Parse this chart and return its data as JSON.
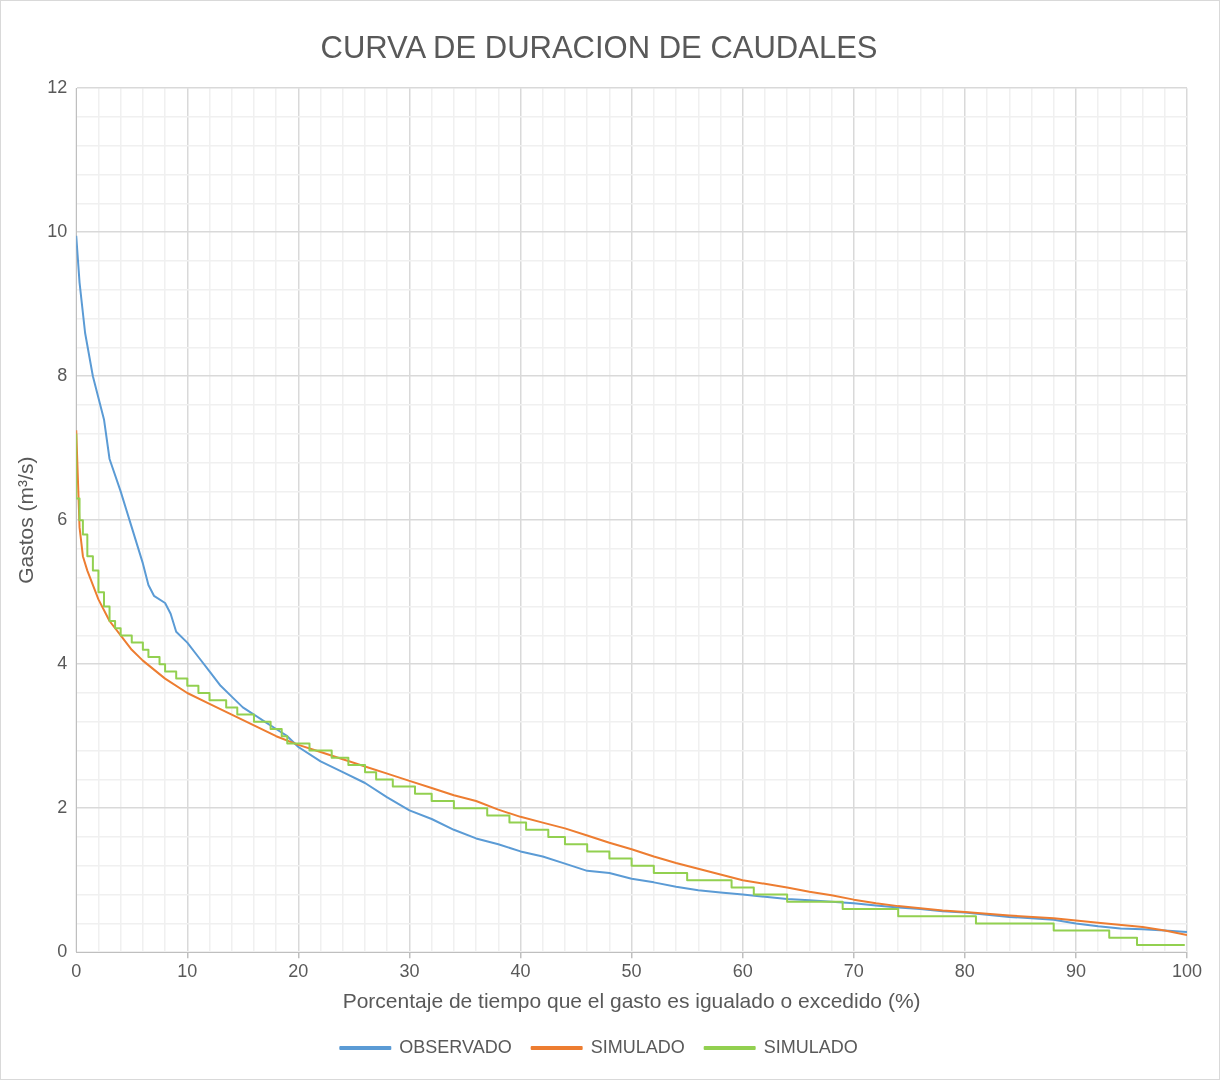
{
  "chart_data": {
    "type": "line",
    "title": "CURVA DE DURACION DE CAUDALES",
    "xlabel": "Porcentaje de tiempo que el gasto es igualado o excedido (%)",
    "ylabel": "Gastos (m³/s)",
    "xlim": [
      0,
      100
    ],
    "ylim": [
      0,
      12
    ],
    "xticks": [
      0,
      {
        "value": 2,
        "label": null
      },
      {
        "value": 4,
        "label": null
      },
      {
        "value": 6,
        "label": null
      },
      {
        "value": 8,
        "label": null
      },
      10,
      {
        "value": 12,
        "label": null
      },
      {
        "value": 14,
        "label": null
      },
      {
        "value": 16,
        "label": null
      },
      {
        "value": 18,
        "label": null
      },
      20,
      {
        "value": 22,
        "label": null
      },
      {
        "value": 24,
        "label": null
      },
      {
        "value": 26,
        "label": null
      },
      {
        "value": 28,
        "label": null
      },
      30,
      {
        "value": 32,
        "label": null
      },
      {
        "value": 34,
        "label": null
      },
      {
        "value": 36,
        "label": null
      },
      {
        "value": 38,
        "label": null
      },
      40,
      {
        "value": 42,
        "label": null
      },
      {
        "value": 44,
        "label": null
      },
      {
        "value": 46,
        "label": null
      },
      {
        "value": 48,
        "label": null
      },
      50,
      {
        "value": 52,
        "label": null
      },
      {
        "value": 54,
        "label": null
      },
      {
        "value": 56,
        "label": null
      },
      {
        "value": 58,
        "label": null
      },
      60,
      {
        "value": 62,
        "label": null
      },
      {
        "value": 64,
        "label": null
      },
      {
        "value": 66,
        "label": null
      },
      {
        "value": 68,
        "label": null
      },
      70,
      {
        "value": 72,
        "label": null
      },
      {
        "value": 74,
        "label": null
      },
      {
        "value": 76,
        "label": null
      },
      {
        "value": 78,
        "label": null
      },
      80,
      {
        "value": 82,
        "label": null
      },
      {
        "value": 84,
        "label": null
      },
      {
        "value": 86,
        "label": null
      },
      {
        "value": 88,
        "label": null
      },
      90,
      {
        "value": 92,
        "label": null
      },
      {
        "value": 94,
        "label": null
      },
      {
        "value": 96,
        "label": null
      },
      {
        "value": 98,
        "label": null
      },
      100
    ],
    "yticks": [
      0,
      {
        "value": 0.4,
        "label": null
      },
      {
        "value": 0.8,
        "label": null
      },
      {
        "value": 1.2,
        "label": null
      },
      {
        "value": 1.6,
        "label": null
      },
      2,
      {
        "value": 2.4,
        "label": null
      },
      {
        "value": 2.8,
        "label": null
      },
      {
        "value": 3.2,
        "label": null
      },
      {
        "value": 3.6,
        "label": null
      },
      4,
      {
        "value": 4.4,
        "label": null
      },
      {
        "value": 4.8,
        "label": null
      },
      {
        "value": 5.2,
        "label": null
      },
      {
        "value": 5.6,
        "label": null
      },
      6,
      {
        "value": 6.4,
        "label": null
      },
      {
        "value": 6.8,
        "label": null
      },
      {
        "value": 7.2,
        "label": null
      },
      {
        "value": 7.6,
        "label": null
      },
      8,
      {
        "value": 8.4,
        "label": null
      },
      {
        "value": 8.8,
        "label": null
      },
      {
        "value": 9.2,
        "label": null
      },
      {
        "value": 9.6,
        "label": null
      },
      10,
      {
        "value": 10.4,
        "label": null
      },
      {
        "value": 10.8,
        "label": null
      },
      {
        "value": 11.2,
        "label": null
      },
      {
        "value": 11.6,
        "label": null
      },
      12
    ],
    "grid": true,
    "legend": "bottom",
    "marker": "none",
    "line_style": "solid",
    "series": [
      {
        "name": "OBSERVADO",
        "color": "#5b9bd5",
        "x": [
          0,
          0.3,
          0.8,
          1.5,
          2.5,
          3,
          4,
          5,
          6,
          6.5,
          7,
          8,
          8.5,
          9,
          10,
          11,
          12,
          13,
          14,
          15,
          16,
          17,
          18,
          19,
          20,
          22,
          24,
          26,
          28,
          30,
          32,
          34,
          36,
          38,
          40,
          42,
          44,
          46,
          48,
          50,
          52,
          54,
          56,
          58,
          60,
          62,
          64,
          66,
          68,
          70,
          72,
          74,
          76,
          78,
          80,
          82,
          84,
          86,
          88,
          90,
          92,
          94,
          96,
          98,
          100
        ],
        "values": [
          9.95,
          9.3,
          8.6,
          8.0,
          7.4,
          6.85,
          6.4,
          5.9,
          5.4,
          5.1,
          4.95,
          4.85,
          4.7,
          4.45,
          4.3,
          4.1,
          3.9,
          3.7,
          3.55,
          3.4,
          3.3,
          3.2,
          3.1,
          3.0,
          2.85,
          2.65,
          2.5,
          2.35,
          2.15,
          1.97,
          1.85,
          1.7,
          1.58,
          1.5,
          1.4,
          1.33,
          1.23,
          1.13,
          1.1,
          1.02,
          0.97,
          0.91,
          0.86,
          0.83,
          0.8,
          0.77,
          0.74,
          0.72,
          0.7,
          0.68,
          0.65,
          0.62,
          0.6,
          0.57,
          0.55,
          0.52,
          0.49,
          0.47,
          0.45,
          0.4,
          0.36,
          0.33,
          0.32,
          0.3,
          0.28
        ]
      },
      {
        "name": "SIMULADO",
        "color": "#ed7d31",
        "x": [
          0,
          0.3,
          0.6,
          1,
          2,
          3,
          4,
          5,
          6,
          8,
          10,
          12,
          14,
          16,
          18,
          20,
          22,
          24,
          26,
          28,
          30,
          32,
          34,
          36,
          38,
          40,
          42,
          44,
          46,
          48,
          50,
          52,
          54,
          56,
          58,
          60,
          62,
          64,
          66,
          68,
          70,
          72,
          74,
          76,
          78,
          80,
          84,
          88,
          92,
          96,
          98,
          100
        ],
        "values": [
          7.25,
          5.9,
          5.5,
          5.3,
          4.9,
          4.6,
          4.4,
          4.2,
          4.05,
          3.8,
          3.6,
          3.45,
          3.3,
          3.15,
          3.0,
          2.88,
          2.78,
          2.68,
          2.58,
          2.48,
          2.38,
          2.28,
          2.18,
          2.1,
          1.98,
          1.88,
          1.8,
          1.72,
          1.62,
          1.52,
          1.43,
          1.33,
          1.24,
          1.16,
          1.08,
          1.0,
          0.95,
          0.9,
          0.84,
          0.79,
          0.73,
          0.68,
          0.64,
          0.61,
          0.58,
          0.56,
          0.51,
          0.47,
          0.41,
          0.35,
          0.3,
          0.24
        ]
      },
      {
        "name": "SIMULADO",
        "type": "step",
        "color": "#92d050",
        "x": [
          0,
          0.3,
          0.6,
          1,
          1.5,
          2,
          2.5,
          3,
          3.5,
          4,
          5,
          6,
          6.5,
          7.5,
          8,
          9,
          10,
          11,
          12,
          13.5,
          14.5,
          16,
          17.5,
          18.5,
          19,
          21,
          23,
          24.5,
          26,
          27,
          28.5,
          30.5,
          32,
          34,
          37,
          39,
          40.5,
          42.5,
          44,
          46,
          48,
          50,
          52,
          55,
          59,
          61,
          64,
          69,
          74,
          81,
          88,
          93,
          95.5,
          99.8
        ],
        "values": [
          7.2,
          6.3,
          6.0,
          5.8,
          5.5,
          5.3,
          5.0,
          4.8,
          4.6,
          4.5,
          4.4,
          4.3,
          4.2,
          4.1,
          4.0,
          3.9,
          3.8,
          3.7,
          3.6,
          3.5,
          3.4,
          3.3,
          3.2,
          3.1,
          3.0,
          2.9,
          2.8,
          2.7,
          2.6,
          2.5,
          2.4,
          2.3,
          2.2,
          2.1,
          2.0,
          1.9,
          1.8,
          1.7,
          1.6,
          1.5,
          1.4,
          1.3,
          1.2,
          1.1,
          1.0,
          0.9,
          0.8,
          0.7,
          0.6,
          0.5,
          0.4,
          0.3,
          0.2,
          0.1
        ]
      }
    ]
  }
}
